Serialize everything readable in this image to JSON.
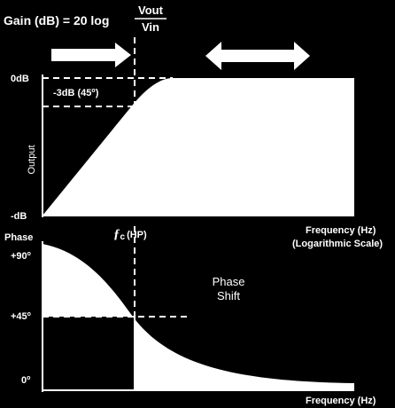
{
  "header": {
    "title": "Gain (dB) = 20 log",
    "numerator": "Vout",
    "denominator": "Vin"
  },
  "gain_plot": {
    "zero_db": "0dB",
    "minus_db": "-dB",
    "cutoff": {
      "text": "-3dB (45",
      "sup": "o",
      "close": ")"
    },
    "y_label": "Output",
    "x_label": "Frequency (Hz)",
    "x_scale": "(Logarithmic Scale)"
  },
  "phase_plot": {
    "y_label": "Phase",
    "ticks": [
      {
        "text": "+90",
        "sup": "o"
      },
      {
        "text": "+45",
        "sup": "o"
      },
      {
        "text": "0",
        "sup": "o"
      }
    ],
    "fc_symbol": "ƒ",
    "fc_sub": "c",
    "fc_label": "(HP)",
    "annotation": [
      "Phase",
      "Shift"
    ],
    "x_label": "Frequency (Hz)"
  }
}
